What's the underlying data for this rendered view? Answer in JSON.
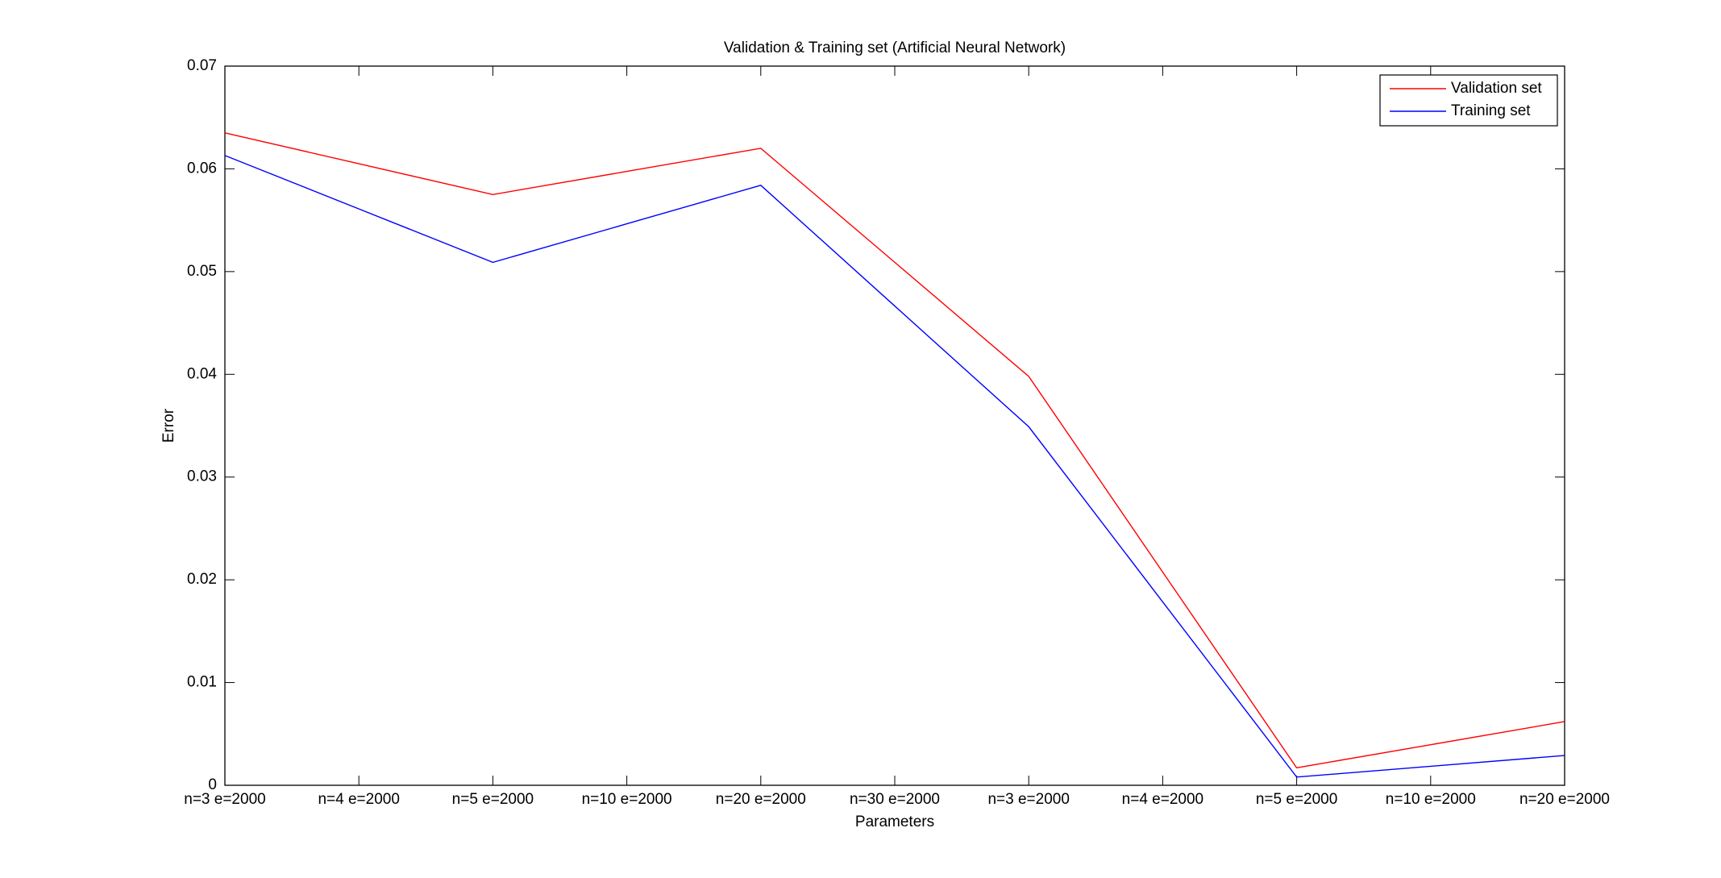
{
  "chart_data": {
    "type": "line",
    "title": "Validation & Training set (Artificial Neural Network)",
    "x_label": "Parameters",
    "y_label": "Error",
    "categories": [
      "n=3 e=2000",
      "n=4 e=2000",
      "n=5 e=2000",
      "n=10 e=2000",
      "n=20 e=2000",
      "n=30 e=2000",
      "n=3 e=2000",
      "n=4 e=2000",
      "n=5 e=2000",
      "n=10 e=2000",
      "n=20 e=2000"
    ],
    "series": [
      {
        "name": "Validation set",
        "color": "#ff0000",
        "values": [
          0.0635,
          0.0605,
          0.0575,
          0.05975,
          0.062,
          0.0509,
          0.0398,
          0.02075,
          0.0017,
          0.00395,
          0.0062
        ]
      },
      {
        "name": "Training set",
        "color": "#0000ff",
        "values": [
          0.0613,
          0.0561,
          0.0509,
          0.05465,
          0.0584,
          0.04665,
          0.0349,
          0.01785,
          0.0008,
          0.00185,
          0.0029
        ]
      }
    ],
    "ylim": [
      0,
      0.07
    ],
    "yticks": [
      0,
      0.01,
      0.02,
      0.03,
      0.04,
      0.05,
      0.06,
      0.07
    ],
    "legend": "upper right",
    "grid": false
  }
}
